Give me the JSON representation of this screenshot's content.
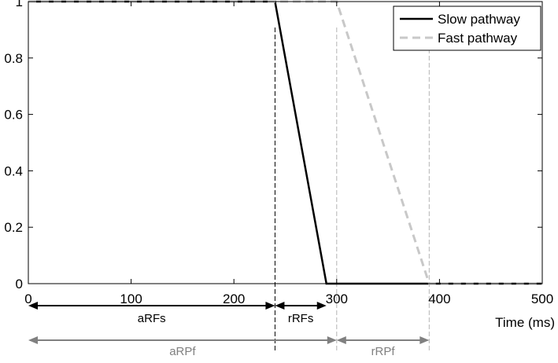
{
  "chart_data": {
    "type": "line",
    "title": "",
    "xlabel": "Time (ms)",
    "ylabel": "",
    "xlim": [
      0,
      500
    ],
    "ylim": [
      0,
      1
    ],
    "xticks": [
      0,
      100,
      200,
      300,
      400,
      500
    ],
    "yticks": [
      0,
      0.2,
      0.4,
      0.6,
      0.8,
      1
    ],
    "grid": false,
    "legend_position": "top-right",
    "series": [
      {
        "name": "Slow pathway",
        "style": "solid",
        "color": "#000000",
        "x": [
          0,
          240,
          290,
          500
        ],
        "y": [
          1,
          1,
          0,
          0
        ]
      },
      {
        "name": "Fast pathway",
        "style": "dashed",
        "color": "#c8c8c8",
        "x": [
          0,
          300,
          390,
          500
        ],
        "y": [
          1,
          1,
          0,
          0
        ]
      }
    ],
    "annotations": [
      {
        "label": "aRFs",
        "from": 0,
        "to": 240,
        "color": "#000000",
        "row": 1
      },
      {
        "label": "rRFs",
        "from": 240,
        "to": 290,
        "color": "#000000",
        "row": 1
      },
      {
        "label": "aRPf",
        "from": 0,
        "to": 300,
        "color": "#808080",
        "row": 2
      },
      {
        "label": "rRPf",
        "from": 300,
        "to": 390,
        "color": "#808080",
        "row": 2
      }
    ],
    "vertical_markers": [
      {
        "x": 240,
        "color": "#000000"
      },
      {
        "x": 300,
        "color": "#b4b4b4"
      },
      {
        "x": 390,
        "color": "#b4b4b4"
      }
    ]
  }
}
